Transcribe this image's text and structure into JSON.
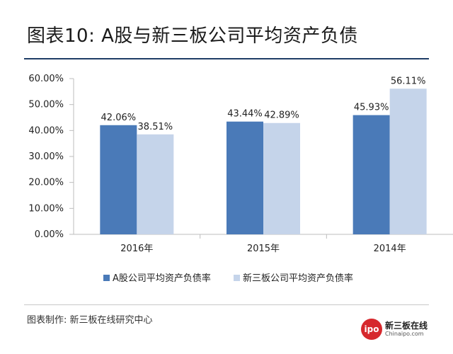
{
  "title": "图表10: A股与新三板公司平均资产负债",
  "source": "图表制作: 新三板在线研究中心",
  "logo": {
    "mark": "ipo",
    "name": "新三板在线",
    "site": "Chinaipo.com"
  },
  "colors": {
    "series1": "#4a7ab8",
    "series2": "#c5d4ea",
    "rule": "#1f3d66"
  },
  "chart_data": {
    "type": "bar",
    "categories": [
      "2016年",
      "2015年",
      "2014年"
    ],
    "series": [
      {
        "name": "A股公司平均资产负债率",
        "values": [
          42.06,
          43.44,
          45.93
        ],
        "labels": [
          "42.06%",
          "43.44%",
          "45.93%"
        ]
      },
      {
        "name": "新三板公司平均资产负债率",
        "values": [
          38.51,
          42.89,
          56.11
        ],
        "labels": [
          "38.51%",
          "42.89%",
          "56.11%"
        ]
      }
    ],
    "ylim": [
      0,
      60
    ],
    "yticks": [
      "0.00%",
      "10.00%",
      "20.00%",
      "30.00%",
      "40.00%",
      "50.00%",
      "60.00%"
    ],
    "ytick_values": [
      0,
      10,
      20,
      30,
      40,
      50,
      60
    ],
    "legend_position": "bottom"
  }
}
